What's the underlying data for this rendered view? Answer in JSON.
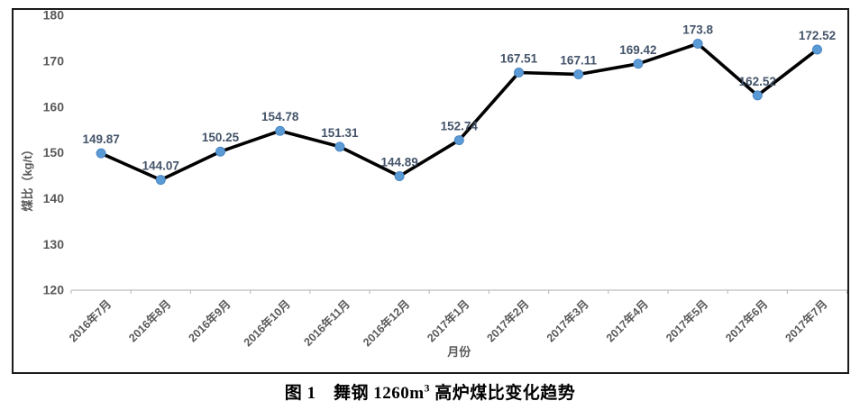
{
  "figure_caption": {
    "prefix": "图 1　舞钢 1260m",
    "sup": "3",
    "suffix": " 高炉煤比变化趋势"
  },
  "chart_data": {
    "type": "line",
    "categories": [
      "2016年7月",
      "2016年8月",
      "2016年9月",
      "2016年10月",
      "2016年11月",
      "2016年12月",
      "2017年1月",
      "2017年2月",
      "2017年3月",
      "2017年4月",
      "2017年5月",
      "2017年6月",
      "2017年7月"
    ],
    "series": [
      {
        "name": "煤比",
        "values": [
          149.87,
          144.07,
          150.25,
          154.78,
          151.31,
          144.89,
          152.74,
          167.51,
          167.11,
          169.42,
          173.8,
          162.52,
          172.52
        ],
        "data_labels": [
          "149.87",
          "144.07",
          "150.25",
          "154.78",
          "151.31",
          "144.89",
          "152.74",
          "167.51",
          "167.11",
          "169.42",
          "173.8",
          "162.52",
          "172.52"
        ]
      }
    ],
    "title": "",
    "xlabel": "月份",
    "ylabel": "煤比（kg/t）",
    "ylim": [
      120,
      180
    ],
    "yticks": [
      120,
      130,
      140,
      150,
      160,
      170,
      180
    ],
    "grid": false,
    "legend_position": "none",
    "marker": "circle",
    "colors": {
      "line": "#000000",
      "marker_fill": "#5B9BD5",
      "marker_edge": "#4a86c5",
      "axis_line": "#bfbfbf",
      "tick_label": "#595959",
      "data_label": "#44546A",
      "axis_title": "#595959",
      "frame_border": "#1a1a1a"
    }
  }
}
